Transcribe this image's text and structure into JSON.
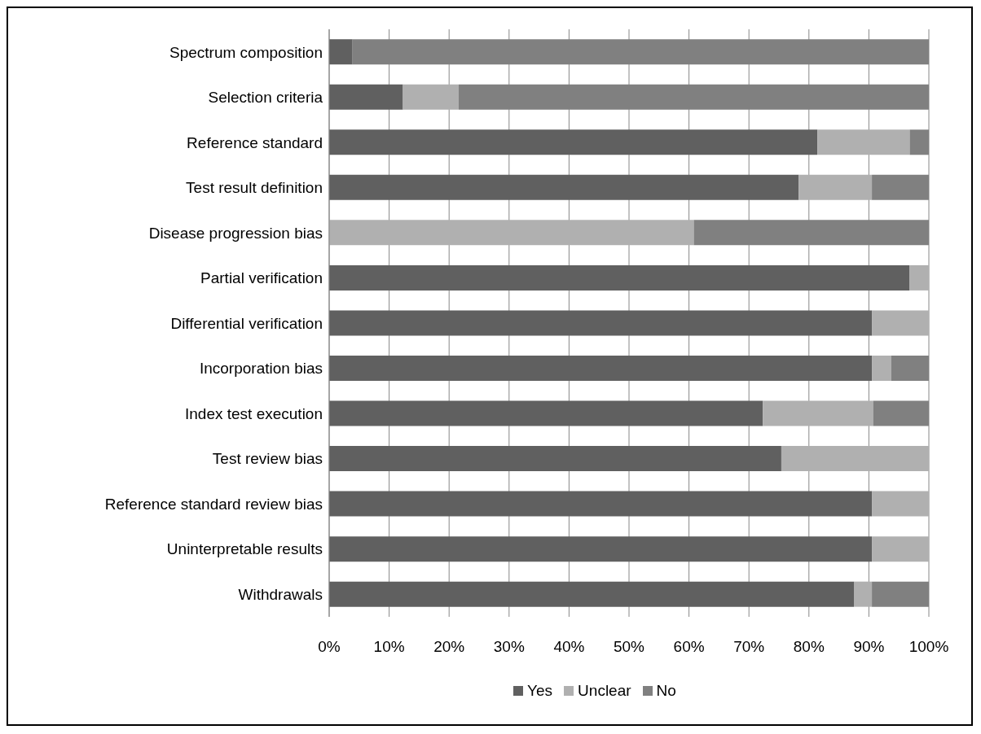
{
  "chart_data": {
    "type": "bar",
    "orientation": "horizontal",
    "stacked": true,
    "categories": [
      "Spectrum composition",
      "Selection criteria",
      "Reference standard",
      "Test result definition",
      "Disease progression bias",
      "Partial verification",
      "Differential  verification",
      "Incorporation bias",
      "Index test execution",
      "Test review bias",
      "Reference standard review bias",
      "Uninterpretable results",
      "Withdrawals"
    ],
    "series": [
      {
        "name": "Yes",
        "color": "#606060",
        "values": [
          3.9,
          12.3,
          81.4,
          78.3,
          0,
          96.8,
          90.5,
          90.5,
          72.3,
          75.4,
          90.5,
          90.5,
          87.5
        ]
      },
      {
        "name": "Unclear",
        "color": "#b0b0b0",
        "values": [
          0,
          9.3,
          15.4,
          12.2,
          60.8,
          3.2,
          9.5,
          3.2,
          18.4,
          24.6,
          9.5,
          9.5,
          3.0
        ]
      },
      {
        "name": "No",
        "color": "#808080",
        "values": [
          96.1,
          78.4,
          3.2,
          9.5,
          39.2,
          0,
          0,
          6.3,
          9.3,
          0,
          0,
          0,
          9.5
        ]
      }
    ],
    "xlim": [
      0,
      100
    ],
    "xticks": [
      {
        "value": 0,
        "label": "0%"
      },
      {
        "value": 10,
        "label": "10%"
      },
      {
        "value": 20,
        "label": "20%"
      },
      {
        "value": 30,
        "label": "30%"
      },
      {
        "value": 40,
        "label": "40%"
      },
      {
        "value": 50,
        "label": "50%"
      },
      {
        "value": 60,
        "label": "60%"
      },
      {
        "value": 70,
        "label": "70%"
      },
      {
        "value": 80,
        "label": "80%"
      },
      {
        "value": 90,
        "label": "90%"
      },
      {
        "value": 100,
        "label": "100%"
      }
    ],
    "grid": "x",
    "legend": "bottom"
  }
}
